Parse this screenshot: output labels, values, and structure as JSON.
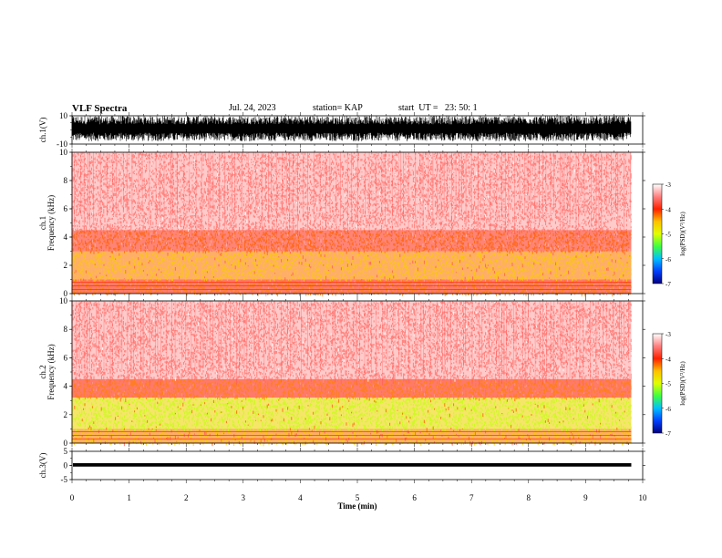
{
  "header": {
    "title": "VLF Spectra",
    "date": "Jul. 24, 2023",
    "station": "station= KAP",
    "start": "start  UT =   23: 50: 1"
  },
  "chart_data": [
    {
      "type": "line",
      "ylabel": "ch.1(V)",
      "ylim": [
        -10,
        10
      ],
      "y_ticks": [
        "10",
        "-10"
      ],
      "xlim": [
        0,
        10
      ],
      "description_level": "dense waveform filling roughly -8 to +10 V, data to ~9.8 min"
    },
    {
      "type": "heatmap",
      "ylabel": "ch.1\nFrequency (kHz)",
      "ylabel_line1": "ch.1",
      "ylabel_line2": "Frequency (kHz)",
      "ylim": [
        0,
        10
      ],
      "y_ticks": [
        "0",
        "2",
        "4",
        "6",
        "8",
        "10"
      ],
      "xlim": [
        0,
        10
      ],
      "data_end_min": 9.8,
      "bands": [
        {
          "f_low": 0,
          "f_high": 1,
          "level": -4.0
        },
        {
          "f_low": 1,
          "f_high": 3,
          "level": -4.3
        },
        {
          "f_low": 3,
          "f_high": 4.5,
          "level": -3.9
        },
        {
          "f_low": 4.5,
          "f_high": 10,
          "level": -3.3
        }
      ]
    },
    {
      "type": "heatmap",
      "ylabel": "ch.2\nFrequency (kHz)",
      "ylabel_line1": "ch.2",
      "ylabel_line2": "Frequency (kHz)",
      "ylim": [
        0,
        10
      ],
      "y_ticks": [
        "0",
        "2",
        "4",
        "6",
        "8",
        "10"
      ],
      "xlim": [
        0,
        10
      ],
      "data_end_min": 9.8,
      "bands": [
        {
          "f_low": 0,
          "f_high": 1,
          "level": -4.3
        },
        {
          "f_low": 1,
          "f_high": 3.2,
          "level": -4.8
        },
        {
          "f_low": 3.2,
          "f_high": 4.5,
          "level": -4.0
        },
        {
          "f_low": 4.5,
          "f_high": 10,
          "level": -3.3
        }
      ]
    },
    {
      "type": "line",
      "ylabel": "ch.3(V)",
      "ylim": [
        -5,
        5
      ],
      "y_ticks": [
        "5",
        "0",
        "-5"
      ],
      "xlim": [
        0,
        10
      ],
      "x_ticks": [
        "0",
        "1",
        "2",
        "3",
        "4",
        "5",
        "6",
        "7",
        "8",
        "9",
        "10"
      ],
      "xlabel": "Time (min)",
      "level_range": [
        -0.4,
        0.8
      ]
    }
  ],
  "colorbar": {
    "label": "log(PSD)(V²/Hz)",
    "ticks": [
      "-3",
      "-4",
      "-5",
      "-6",
      "-7"
    ],
    "range": [
      -7,
      -3
    ],
    "colors": [
      "#000080",
      "#0040ff",
      "#00c0ff",
      "#40ff40",
      "#e0ff00",
      "#ffc000",
      "#ff2000",
      "#ff8080",
      "#ffffff"
    ]
  }
}
